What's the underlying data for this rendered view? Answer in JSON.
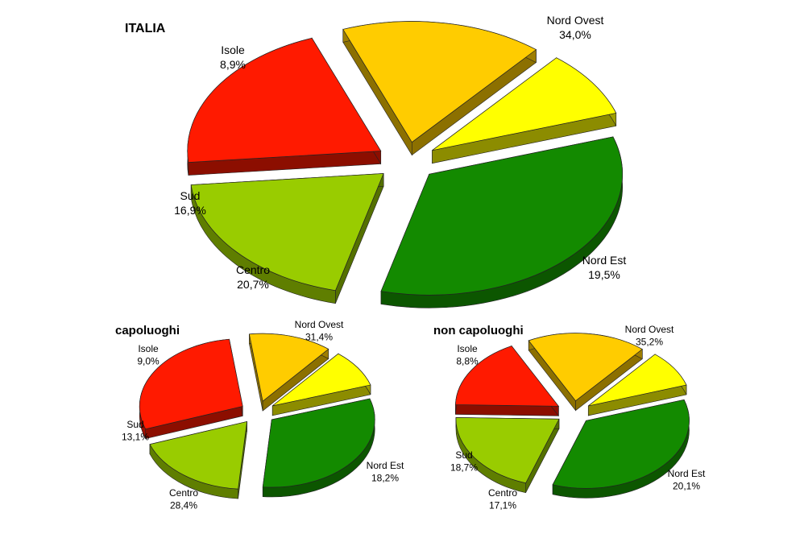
{
  "colors": {
    "Nord Ovest": "#138a00",
    "Nord Est": "#99cc00",
    "Centro": "#ff1a00",
    "Sud": "#ffcc00",
    "Isole": "#ffff00"
  },
  "chart_data": [
    {
      "type": "pie",
      "title": "ITALIA",
      "categories": [
        "Nord Ovest",
        "Nord Est",
        "Centro",
        "Sud",
        "Isole"
      ],
      "values": [
        34.0,
        19.5,
        20.7,
        16.9,
        8.9
      ],
      "value_labels": [
        "34,0%",
        "19,5%",
        "20,7%",
        "16,9%",
        "8,9%"
      ],
      "exploded": true,
      "three_d": true
    },
    {
      "type": "pie",
      "title": "capoluoghi",
      "categories": [
        "Nord Ovest",
        "Nord Est",
        "Centro",
        "Sud",
        "Isole"
      ],
      "values": [
        31.4,
        18.2,
        28.4,
        13.1,
        9.0
      ],
      "value_labels": [
        "31,4%",
        "18,2%",
        "28,4%",
        "13,1%",
        "9,0%"
      ],
      "exploded": true,
      "three_d": true
    },
    {
      "type": "pie",
      "title": "non capoluoghi",
      "categories": [
        "Nord Ovest",
        "Nord Est",
        "Centro",
        "Sud",
        "Isole"
      ],
      "values": [
        35.2,
        20.1,
        17.1,
        18.7,
        8.8
      ],
      "value_labels": [
        "35,2%",
        "20,1%",
        "17,1%",
        "18,7%",
        "8,8%"
      ],
      "exploded": true,
      "three_d": true
    }
  ]
}
